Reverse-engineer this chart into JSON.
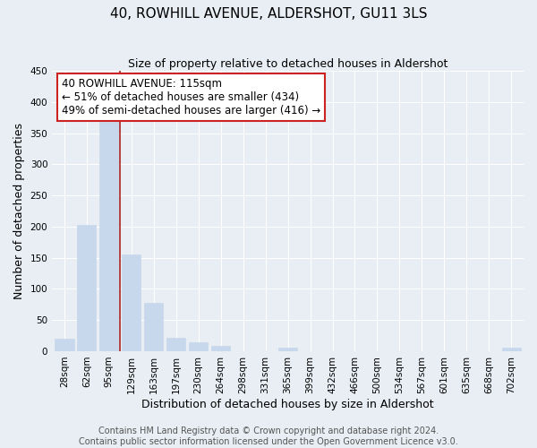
{
  "title": "40, ROWHILL AVENUE, ALDERSHOT, GU11 3LS",
  "subtitle": "Size of property relative to detached houses in Aldershot",
  "xlabel": "Distribution of detached houses by size in Aldershot",
  "ylabel": "Number of detached properties",
  "bar_labels": [
    "28sqm",
    "62sqm",
    "95sqm",
    "129sqm",
    "163sqm",
    "197sqm",
    "230sqm",
    "264sqm",
    "298sqm",
    "331sqm",
    "365sqm",
    "399sqm",
    "432sqm",
    "466sqm",
    "500sqm",
    "534sqm",
    "567sqm",
    "601sqm",
    "635sqm",
    "668sqm",
    "702sqm"
  ],
  "bar_values": [
    20,
    203,
    368,
    156,
    78,
    22,
    15,
    8,
    0,
    0,
    5,
    0,
    0,
    0,
    0,
    0,
    0,
    0,
    0,
    0,
    5
  ],
  "bar_color": "#c8d8ec",
  "marker_line_color": "#aa2222",
  "ylim": [
    0,
    450
  ],
  "yticks": [
    0,
    50,
    100,
    150,
    200,
    250,
    300,
    350,
    400,
    450
  ],
  "annotation_title": "40 ROWHILL AVENUE: 115sqm",
  "annotation_line1": "← 51% of detached houses are smaller (434)",
  "annotation_line2": "49% of semi-detached houses are larger (416) →",
  "footer1": "Contains HM Land Registry data © Crown copyright and database right 2024.",
  "footer2": "Contains public sector information licensed under the Open Government Licence v3.0.",
  "fig_bg": "#e8eef4",
  "plot_bg": "#e8eef4",
  "grid_color": "#ffffff",
  "title_fontsize": 11,
  "subtitle_fontsize": 9,
  "axis_label_fontsize": 9,
  "tick_fontsize": 7.5,
  "annotation_fontsize": 8.5,
  "footer_fontsize": 7
}
